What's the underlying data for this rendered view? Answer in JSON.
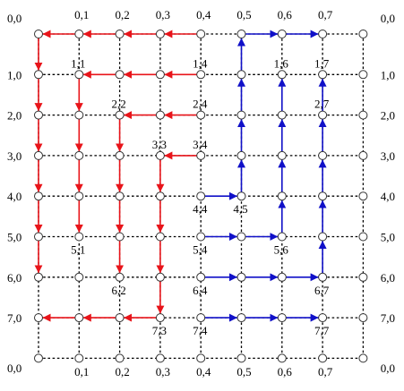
{
  "grid": {
    "rows": 9,
    "cols": 9
  },
  "colors": {
    "red": "#e8141a",
    "blue": "#1010c8",
    "grid": "#000000"
  },
  "top_labels": [
    "0,0",
    "0,1",
    "0,2",
    "0,3",
    "0,4",
    "0,5",
    "0,6",
    "0,7",
    "0,0"
  ],
  "bottom_labels": [
    "0,0",
    "0,1",
    "0,2",
    "0,3",
    "0,4",
    "0,5",
    "0,6",
    "0,7",
    "0,0"
  ],
  "left_labels": [
    "1,0",
    "2,0",
    "3,0",
    "4,0",
    "5,0",
    "6,0",
    "7,0"
  ],
  "right_labels": [
    "1,0",
    "2,0",
    "3,0",
    "4,0",
    "5,0",
    "6,0",
    "7,0"
  ],
  "node_labels": [
    {
      "text": "1,1",
      "r": 1,
      "c": 1,
      "pos": "above"
    },
    {
      "text": "1,4",
      "r": 1,
      "c": 4,
      "pos": "above"
    },
    {
      "text": "1,6",
      "r": 1,
      "c": 6,
      "pos": "above"
    },
    {
      "text": "1,7",
      "r": 1,
      "c": 7,
      "pos": "above"
    },
    {
      "text": "2,2",
      "r": 2,
      "c": 2,
      "pos": "above"
    },
    {
      "text": "2,4",
      "r": 2,
      "c": 4,
      "pos": "above"
    },
    {
      "text": "2,7",
      "r": 2,
      "c": 7,
      "pos": "above"
    },
    {
      "text": "3,3",
      "r": 3,
      "c": 3,
      "pos": "above"
    },
    {
      "text": "3,4",
      "r": 3,
      "c": 4,
      "pos": "above"
    },
    {
      "text": "4,4",
      "r": 4,
      "c": 4,
      "pos": "below"
    },
    {
      "text": "4,5",
      "r": 4,
      "c": 5,
      "pos": "below"
    },
    {
      "text": "5,1",
      "r": 5,
      "c": 1,
      "pos": "below"
    },
    {
      "text": "5,4",
      "r": 5,
      "c": 4,
      "pos": "below"
    },
    {
      "text": "5,6",
      "r": 5,
      "c": 6,
      "pos": "below"
    },
    {
      "text": "6,2",
      "r": 6,
      "c": 2,
      "pos": "below"
    },
    {
      "text": "6,4",
      "r": 6,
      "c": 4,
      "pos": "below"
    },
    {
      "text": "6,7",
      "r": 6,
      "c": 7,
      "pos": "below"
    },
    {
      "text": "7,3",
      "r": 7,
      "c": 3,
      "pos": "below"
    },
    {
      "text": "7,4",
      "r": 7,
      "c": 4,
      "pos": "below"
    },
    {
      "text": "7,7",
      "r": 7,
      "c": 7,
      "pos": "below"
    }
  ],
  "red_arrows": [
    [
      0,
      4,
      0,
      3
    ],
    [
      0,
      3,
      0,
      2
    ],
    [
      0,
      2,
      0,
      1
    ],
    [
      0,
      1,
      0,
      0
    ],
    [
      0,
      0,
      1,
      0
    ],
    [
      1,
      0,
      2,
      0
    ],
    [
      2,
      0,
      3,
      0
    ],
    [
      3,
      0,
      4,
      0
    ],
    [
      4,
      0,
      5,
      0
    ],
    [
      5,
      0,
      6,
      0
    ],
    [
      1,
      4,
      1,
      3
    ],
    [
      1,
      3,
      1,
      2
    ],
    [
      1,
      2,
      1,
      1
    ],
    [
      1,
      1,
      2,
      1
    ],
    [
      2,
      1,
      3,
      1
    ],
    [
      3,
      1,
      4,
      1
    ],
    [
      4,
      1,
      5,
      1
    ],
    [
      2,
      4,
      2,
      3
    ],
    [
      2,
      3,
      2,
      2
    ],
    [
      2,
      2,
      3,
      2
    ],
    [
      3,
      2,
      4,
      2
    ],
    [
      4,
      2,
      5,
      2
    ],
    [
      5,
      2,
      6,
      2
    ],
    [
      3,
      4,
      3,
      3
    ],
    [
      3,
      3,
      4,
      3
    ],
    [
      4,
      3,
      5,
      3
    ],
    [
      5,
      3,
      6,
      3
    ],
    [
      6,
      3,
      7,
      3
    ],
    [
      7,
      3,
      7,
      2
    ],
    [
      7,
      2,
      7,
      1
    ],
    [
      7,
      1,
      7,
      0
    ]
  ],
  "blue_arrows": [
    [
      0,
      5,
      0,
      6
    ],
    [
      0,
      6,
      0,
      7
    ],
    [
      1,
      5,
      0,
      5
    ],
    [
      2,
      5,
      1,
      5
    ],
    [
      3,
      5,
      2,
      5
    ],
    [
      4,
      5,
      3,
      5
    ],
    [
      2,
      6,
      1,
      6
    ],
    [
      3,
      6,
      2,
      6
    ],
    [
      4,
      6,
      3,
      6
    ],
    [
      5,
      6,
      4,
      6
    ],
    [
      2,
      7,
      1,
      7
    ],
    [
      3,
      7,
      2,
      7
    ],
    [
      4,
      7,
      3,
      7
    ],
    [
      5,
      7,
      4,
      7
    ],
    [
      6,
      7,
      5,
      7
    ],
    [
      4,
      4,
      4,
      5
    ],
    [
      5,
      4,
      5,
      5
    ],
    [
      5,
      5,
      5,
      6
    ],
    [
      6,
      4,
      6,
      5
    ],
    [
      6,
      5,
      6,
      6
    ],
    [
      6,
      6,
      6,
      7
    ],
    [
      7,
      4,
      7,
      5
    ],
    [
      7,
      5,
      7,
      6
    ],
    [
      7,
      6,
      7,
      7
    ]
  ]
}
